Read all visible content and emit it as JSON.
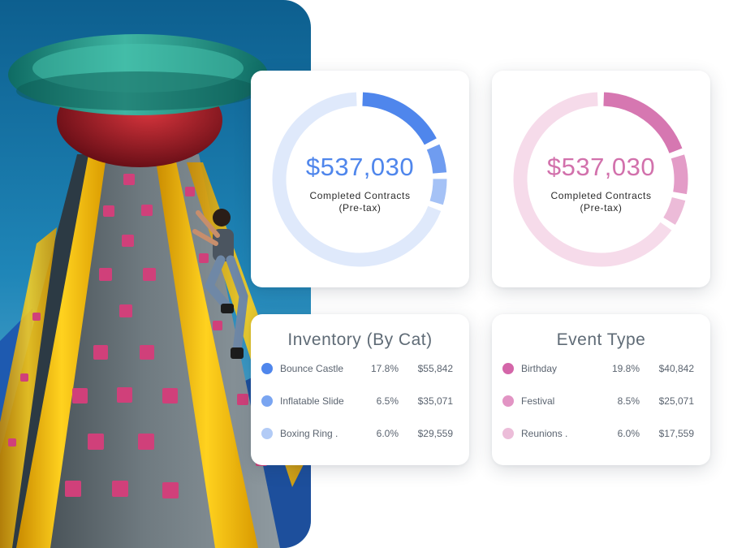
{
  "photo": {
    "subject": "child climbing an inflatable climbing tower"
  },
  "inventory_summary": {
    "amount": "$537,030",
    "caption_line1": "Completed Contracts",
    "caption_line2": "(Pre-tax)",
    "ring_colors": [
      "#4f86ec",
      "#6f9cf0",
      "#a5c2f6",
      "#dfe9fb"
    ],
    "ring_fractions": [
      0.178,
      0.065,
      0.06,
      0.697
    ]
  },
  "event_summary": {
    "amount": "$537,030",
    "caption_line1": "Completed Contracts",
    "caption_line2": "(Pre-tax)",
    "ring_colors": [
      "#d677b1",
      "#e39cc7",
      "#ecbbd8",
      "#f6dbea"
    ],
    "ring_fractions": [
      0.198,
      0.085,
      0.06,
      0.657
    ]
  },
  "inventory": {
    "title": "Inventory (By Cat)",
    "rows": [
      {
        "name": "Bounce Castle",
        "pct": "17.8%",
        "value": "$55,842",
        "color": "#4f86ec"
      },
      {
        "name": "Inflatable Slide",
        "pct": "6.5%",
        "value": "$35,071",
        "color": "#7aa5f1"
      },
      {
        "name": "Boxing Ring .",
        "pct": "6.0%",
        "value": "$29,559",
        "color": "#b2cbf6"
      }
    ]
  },
  "event_type": {
    "title": "Event Type",
    "rows": [
      {
        "name": "Birthday",
        "pct": "19.8%",
        "value": "$40,842",
        "color": "#d466a9"
      },
      {
        "name": "Festival",
        "pct": "8.5%",
        "value": "$25,071",
        "color": "#e294c4"
      },
      {
        "name": "Reunions .",
        "pct": "6.0%",
        "value": "$17,559",
        "color": "#ecbdd9"
      }
    ]
  }
}
